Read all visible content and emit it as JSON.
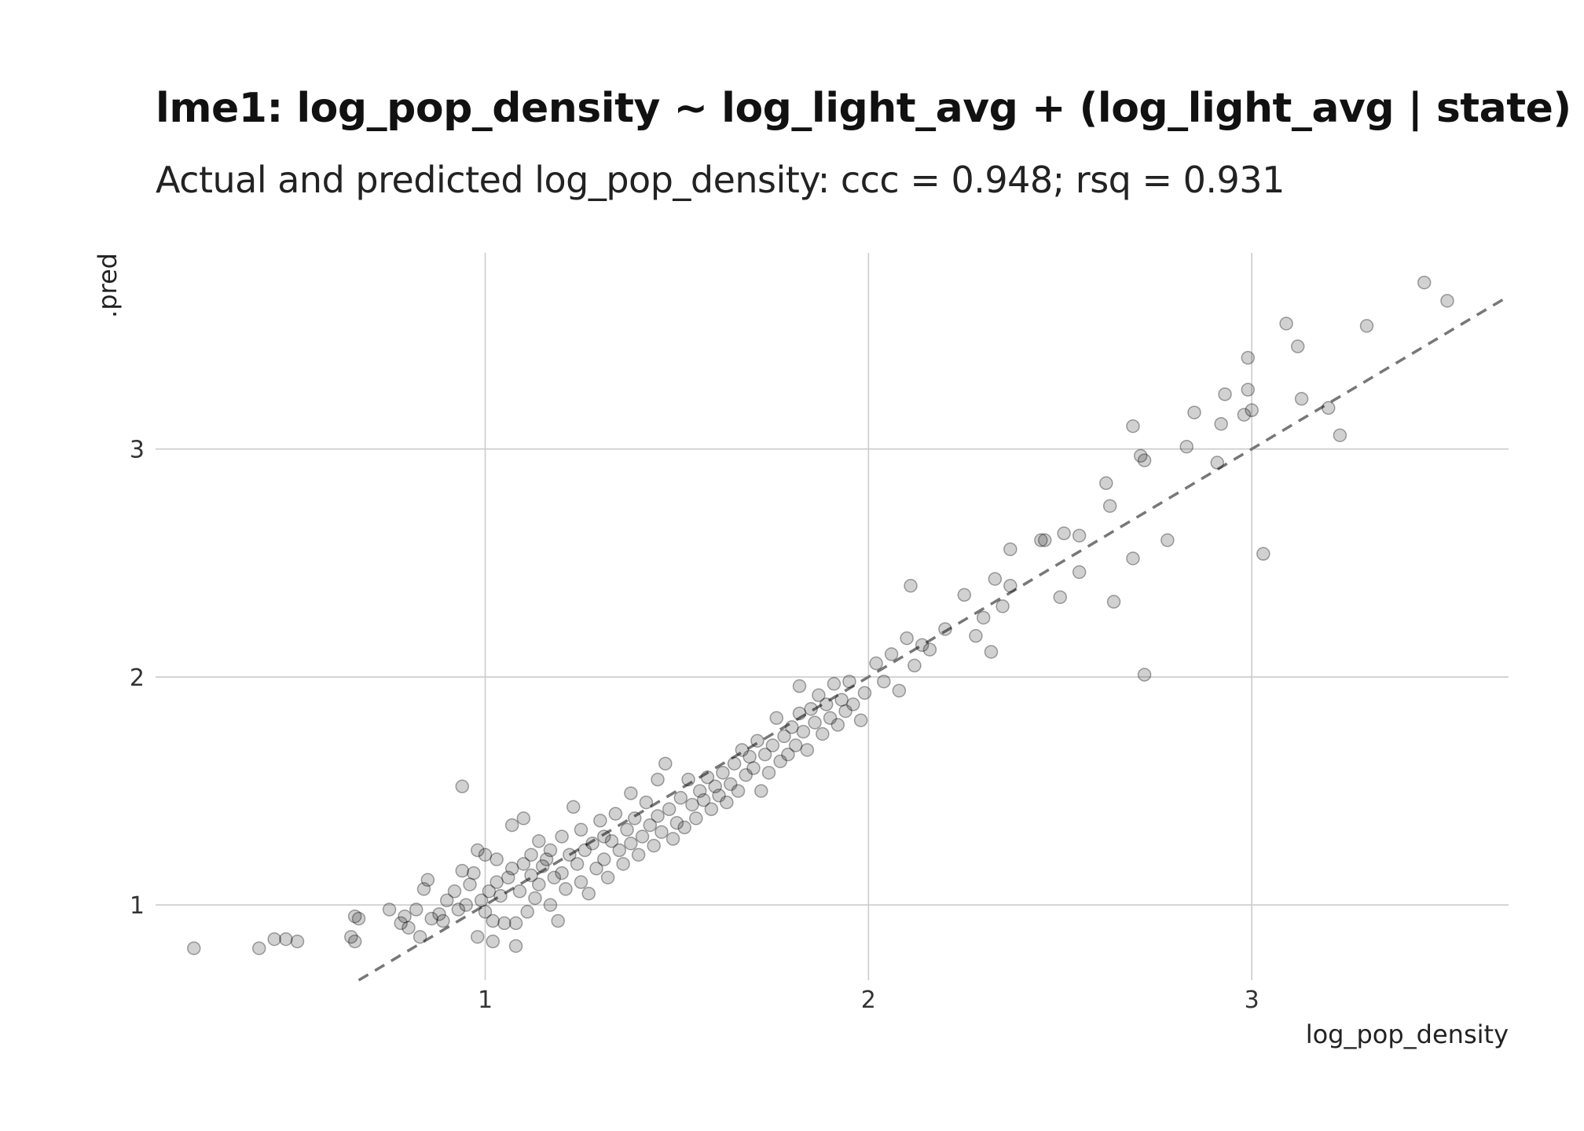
{
  "chart_data": {
    "type": "scatter",
    "title": "lme1: log_pop_density ~ log_light_avg + (log_light_avg | state)",
    "subtitle": "Actual and predicted log_pop_density: ccc = 0.948; rsq = 0.931",
    "xlabel": "log_pop_density",
    "ylabel": ".pred",
    "xlim": [
      0.14,
      3.67
    ],
    "ylim": [
      0.67,
      3.86
    ],
    "x_ticks": [
      1,
      2,
      3
    ],
    "y_ticks": [
      1,
      2,
      3
    ],
    "grid": true,
    "reference_line": {
      "kind": "identity",
      "slope": 1,
      "intercept": 0,
      "style": "dashed"
    },
    "point_color": "#000000",
    "point_alpha": 0.18,
    "line_color": "#777777",
    "points": [
      [
        0.24,
        0.81
      ],
      [
        0.41,
        0.81
      ],
      [
        0.45,
        0.85
      ],
      [
        0.48,
        0.85
      ],
      [
        0.51,
        0.84
      ],
      [
        0.65,
        0.86
      ],
      [
        0.66,
        0.84
      ],
      [
        0.66,
        0.95
      ],
      [
        0.67,
        0.94
      ],
      [
        0.75,
        0.98
      ],
      [
        0.78,
        0.92
      ],
      [
        0.79,
        0.95
      ],
      [
        0.8,
        0.9
      ],
      [
        0.82,
        0.98
      ],
      [
        0.83,
        0.86
      ],
      [
        0.84,
        1.07
      ],
      [
        0.85,
        1.11
      ],
      [
        0.86,
        0.94
      ],
      [
        0.88,
        0.96
      ],
      [
        0.89,
        0.93
      ],
      [
        0.9,
        1.02
      ],
      [
        0.92,
        1.06
      ],
      [
        0.93,
        0.98
      ],
      [
        0.94,
        1.15
      ],
      [
        0.94,
        1.52
      ],
      [
        0.95,
        1.0
      ],
      [
        0.96,
        1.09
      ],
      [
        0.97,
        1.14
      ],
      [
        0.98,
        0.86
      ],
      [
        0.98,
        1.24
      ],
      [
        0.99,
        1.02
      ],
      [
        1.0,
        0.97
      ],
      [
        1.0,
        1.22
      ],
      [
        1.01,
        1.06
      ],
      [
        1.02,
        0.84
      ],
      [
        1.02,
        0.93
      ],
      [
        1.03,
        1.1
      ],
      [
        1.03,
        1.2
      ],
      [
        1.04,
        1.04
      ],
      [
        1.05,
        0.92
      ],
      [
        1.06,
        1.12
      ],
      [
        1.07,
        1.16
      ],
      [
        1.07,
        1.35
      ],
      [
        1.08,
        0.82
      ],
      [
        1.08,
        0.92
      ],
      [
        1.09,
        1.06
      ],
      [
        1.1,
        1.18
      ],
      [
        1.1,
        1.38
      ],
      [
        1.11,
        0.97
      ],
      [
        1.12,
        1.13
      ],
      [
        1.12,
        1.22
      ],
      [
        1.13,
        1.03
      ],
      [
        1.14,
        1.09
      ],
      [
        1.14,
        1.28
      ],
      [
        1.15,
        1.17
      ],
      [
        1.16,
        1.2
      ],
      [
        1.17,
        1.0
      ],
      [
        1.17,
        1.24
      ],
      [
        1.18,
        1.12
      ],
      [
        1.19,
        0.93
      ],
      [
        1.2,
        1.14
      ],
      [
        1.2,
        1.3
      ],
      [
        1.21,
        1.07
      ],
      [
        1.22,
        1.22
      ],
      [
        1.23,
        1.43
      ],
      [
        1.24,
        1.18
      ],
      [
        1.25,
        1.1
      ],
      [
        1.25,
        1.33
      ],
      [
        1.26,
        1.24
      ],
      [
        1.27,
        1.05
      ],
      [
        1.28,
        1.27
      ],
      [
        1.29,
        1.16
      ],
      [
        1.3,
        1.37
      ],
      [
        1.31,
        1.2
      ],
      [
        1.31,
        1.3
      ],
      [
        1.32,
        1.12
      ],
      [
        1.33,
        1.28
      ],
      [
        1.34,
        1.4
      ],
      [
        1.35,
        1.24
      ],
      [
        1.36,
        1.18
      ],
      [
        1.37,
        1.33
      ],
      [
        1.38,
        1.49
      ],
      [
        1.38,
        1.27
      ],
      [
        1.39,
        1.38
      ],
      [
        1.4,
        1.22
      ],
      [
        1.41,
        1.3
      ],
      [
        1.42,
        1.45
      ],
      [
        1.43,
        1.35
      ],
      [
        1.44,
        1.26
      ],
      [
        1.45,
        1.39
      ],
      [
        1.45,
        1.55
      ],
      [
        1.46,
        1.32
      ],
      [
        1.47,
        1.62
      ],
      [
        1.48,
        1.42
      ],
      [
        1.49,
        1.29
      ],
      [
        1.5,
        1.36
      ],
      [
        1.51,
        1.47
      ],
      [
        1.52,
        1.34
      ],
      [
        1.53,
        1.55
      ],
      [
        1.54,
        1.44
      ],
      [
        1.55,
        1.38
      ],
      [
        1.56,
        1.5
      ],
      [
        1.57,
        1.46
      ],
      [
        1.58,
        1.56
      ],
      [
        1.59,
        1.42
      ],
      [
        1.6,
        1.52
      ],
      [
        1.61,
        1.48
      ],
      [
        1.62,
        1.58
      ],
      [
        1.63,
        1.45
      ],
      [
        1.64,
        1.53
      ],
      [
        1.65,
        1.62
      ],
      [
        1.66,
        1.5
      ],
      [
        1.67,
        1.68
      ],
      [
        1.68,
        1.57
      ],
      [
        1.69,
        1.65
      ],
      [
        1.7,
        1.6
      ],
      [
        1.71,
        1.72
      ],
      [
        1.72,
        1.5
      ],
      [
        1.73,
        1.66
      ],
      [
        1.74,
        1.58
      ],
      [
        1.75,
        1.7
      ],
      [
        1.76,
        1.82
      ],
      [
        1.77,
        1.63
      ],
      [
        1.78,
        1.74
      ],
      [
        1.79,
        1.66
      ],
      [
        1.8,
        1.78
      ],
      [
        1.81,
        1.7
      ],
      [
        1.82,
        1.96
      ],
      [
        1.82,
        1.84
      ],
      [
        1.83,
        1.76
      ],
      [
        1.84,
        1.68
      ],
      [
        1.85,
        1.86
      ],
      [
        1.86,
        1.8
      ],
      [
        1.87,
        1.92
      ],
      [
        1.88,
        1.75
      ],
      [
        1.89,
        1.88
      ],
      [
        1.9,
        1.82
      ],
      [
        1.91,
        1.97
      ],
      [
        1.92,
        1.79
      ],
      [
        1.93,
        1.9
      ],
      [
        1.94,
        1.85
      ],
      [
        1.95,
        1.98
      ],
      [
        1.96,
        1.88
      ],
      [
        1.98,
        1.81
      ],
      [
        1.99,
        1.93
      ],
      [
        2.02,
        2.06
      ],
      [
        2.04,
        1.98
      ],
      [
        2.06,
        2.1
      ],
      [
        2.08,
        1.94
      ],
      [
        2.1,
        2.17
      ],
      [
        2.12,
        2.05
      ],
      [
        2.14,
        2.14
      ],
      [
        2.16,
        2.12
      ],
      [
        2.11,
        2.4
      ],
      [
        2.2,
        2.21
      ],
      [
        2.25,
        2.36
      ],
      [
        2.28,
        2.18
      ],
      [
        2.3,
        2.26
      ],
      [
        2.32,
        2.11
      ],
      [
        2.33,
        2.43
      ],
      [
        2.35,
        2.31
      ],
      [
        2.37,
        2.56
      ],
      [
        2.37,
        2.4
      ],
      [
        2.45,
        2.6
      ],
      [
        2.46,
        2.6
      ],
      [
        2.5,
        2.35
      ],
      [
        2.51,
        2.63
      ],
      [
        2.55,
        2.46
      ],
      [
        2.55,
        2.62
      ],
      [
        2.62,
        2.85
      ],
      [
        2.63,
        2.75
      ],
      [
        2.64,
        2.33
      ],
      [
        2.69,
        2.52
      ],
      [
        2.69,
        3.1
      ],
      [
        2.71,
        2.97
      ],
      [
        2.72,
        2.95
      ],
      [
        2.72,
        2.01
      ],
      [
        2.78,
        2.6
      ],
      [
        2.83,
        3.01
      ],
      [
        2.85,
        3.16
      ],
      [
        2.91,
        2.94
      ],
      [
        2.92,
        3.11
      ],
      [
        2.93,
        3.24
      ],
      [
        2.98,
        3.15
      ],
      [
        2.99,
        3.4
      ],
      [
        2.99,
        3.26
      ],
      [
        3.0,
        3.17
      ],
      [
        3.03,
        2.54
      ],
      [
        3.09,
        3.55
      ],
      [
        3.12,
        3.45
      ],
      [
        3.13,
        3.22
      ],
      [
        3.2,
        3.18
      ],
      [
        3.23,
        3.06
      ],
      [
        3.3,
        3.54
      ],
      [
        3.45,
        3.73
      ],
      [
        3.51,
        3.65
      ]
    ]
  }
}
